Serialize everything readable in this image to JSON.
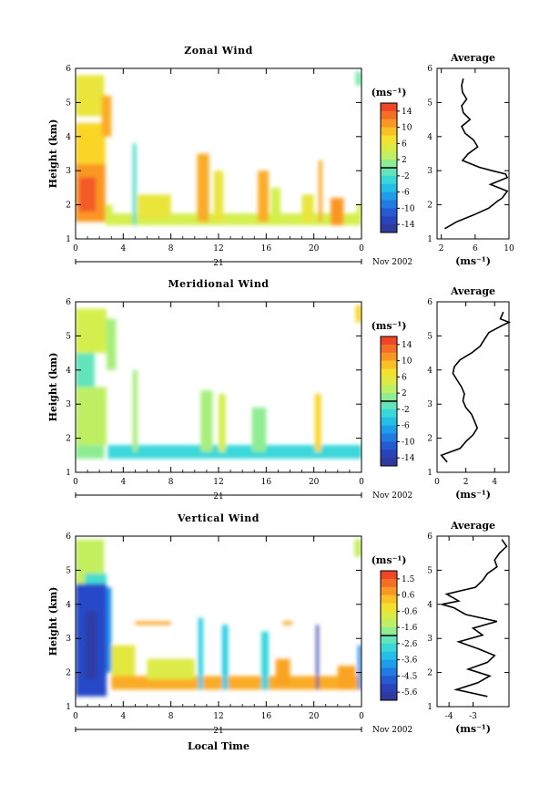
{
  "chart_data": [
    {
      "type": "heatmap",
      "panel": "zonal",
      "title": "Zonal Wind",
      "ylabel": "Height (km)",
      "xlabel": "",
      "xlim": [
        0,
        24
      ],
      "ylim": [
        1,
        6
      ],
      "xticks": [
        "0",
        "4",
        "8",
        "12",
        "16",
        "20",
        "0"
      ],
      "yticks": [
        "1",
        "2",
        "3",
        "4",
        "5",
        "6"
      ],
      "day_label": "21",
      "date_label": "Nov 2002",
      "colorbar": {
        "unit": "(ms⁻¹)",
        "min": -16,
        "max": 16,
        "ticks": [
          "14",
          "10",
          "6",
          "2",
          "-2",
          "-6",
          "-10",
          "-14"
        ]
      },
      "blobs": [
        {
          "x0": 0,
          "x1": 2.4,
          "y0": 4.6,
          "y1": 5.8,
          "value": 6
        },
        {
          "x0": 0,
          "x1": 2.5,
          "y0": 3.2,
          "y1": 4.4,
          "value": 8
        },
        {
          "x0": 0,
          "x1": 2.5,
          "y0": 1.5,
          "y1": 3.2,
          "value": 11
        },
        {
          "x0": 0.3,
          "x1": 1.7,
          "y0": 1.8,
          "y1": 2.8,
          "value": 14
        },
        {
          "x0": 2.2,
          "x1": 3.0,
          "y0": 4.0,
          "y1": 5.2,
          "value": 10
        },
        {
          "x0": 2.5,
          "x1": 3.1,
          "y0": 1.4,
          "y1": 2.0,
          "value": 4
        },
        {
          "x0": 3.0,
          "x1": 24,
          "y0": 1.4,
          "y1": 1.75,
          "value": 4
        },
        {
          "x0": 4.8,
          "x1": 5.1,
          "y0": 1.4,
          "y1": 3.8,
          "value": -2
        },
        {
          "x0": 5.2,
          "x1": 8.0,
          "y0": 1.6,
          "y1": 2.3,
          "value": 6
        },
        {
          "x0": 10.2,
          "x1": 11.2,
          "y0": 1.5,
          "y1": 3.5,
          "value": 10
        },
        {
          "x0": 11.6,
          "x1": 12.4,
          "y0": 1.5,
          "y1": 3.0,
          "value": 6
        },
        {
          "x0": 15.3,
          "x1": 16.2,
          "y0": 1.5,
          "y1": 3.0,
          "value": 10
        },
        {
          "x0": 16.4,
          "x1": 17.2,
          "y0": 1.4,
          "y1": 2.5,
          "value": 4
        },
        {
          "x0": 19.0,
          "x1": 20.0,
          "y0": 1.5,
          "y1": 2.3,
          "value": 6
        },
        {
          "x0": 20.4,
          "x1": 20.7,
          "y0": 1.5,
          "y1": 3.3,
          "value": 10
        },
        {
          "x0": 21.4,
          "x1": 22.5,
          "y0": 1.4,
          "y1": 2.2,
          "value": 11
        },
        {
          "x0": 23.5,
          "x1": 24,
          "y0": 5.5,
          "y1": 5.9,
          "value": 0
        },
        {
          "x0": 23.6,
          "x1": 24,
          "y0": 1.4,
          "y1": 2.0,
          "value": 4
        }
      ],
      "profile": {
        "title": "Average",
        "xlim": [
          1.5,
          10
        ],
        "xticks": [
          2,
          6,
          10
        ],
        "xticklabels": [
          "2",
          "6",
          "10"
        ],
        "xunit": "(ms⁻¹)",
        "y": [
          1.3,
          1.5,
          1.7,
          1.9,
          2.1,
          2.2,
          2.4,
          2.6,
          2.8,
          2.9,
          3.0,
          3.1,
          3.3,
          3.5,
          3.7,
          3.9,
          4.1,
          4.3,
          4.5,
          4.7,
          4.9,
          5.1,
          5.3,
          5.5,
          5.7
        ],
        "x": [
          2.4,
          3.8,
          5.8,
          7.6,
          8.6,
          9.2,
          9.8,
          7.8,
          9.8,
          9.6,
          8.0,
          6.5,
          4.5,
          5.2,
          6.3,
          5.8,
          4.8,
          4.4,
          5.4,
          4.6,
          4.4,
          5.0,
          4.5,
          4.4,
          4.6
        ]
      }
    },
    {
      "type": "heatmap",
      "panel": "meridional",
      "title": "Meridional Wind",
      "ylabel": "Height (km)",
      "xlabel": "",
      "xlim": [
        0,
        24
      ],
      "ylim": [
        1,
        6
      ],
      "xticks": [
        "0",
        "4",
        "8",
        "12",
        "16",
        "20",
        "0"
      ],
      "yticks": [
        "1",
        "2",
        "3",
        "4",
        "5",
        "6"
      ],
      "day_label": "21",
      "date_label": "Nov 2002",
      "colorbar": {
        "unit": "(ms⁻¹)",
        "min": -16,
        "max": 16,
        "ticks": [
          "14",
          "10",
          "6",
          "2",
          "-2",
          "-6",
          "-10",
          "-14"
        ]
      },
      "blobs": [
        {
          "x0": 0,
          "x1": 2.6,
          "y0": 4.5,
          "y1": 5.8,
          "value": 4
        },
        {
          "x0": 0,
          "x1": 1.6,
          "y0": 3.5,
          "y1": 4.5,
          "value": -1
        },
        {
          "x0": 0,
          "x1": 2.6,
          "y0": 1.8,
          "y1": 3.5,
          "value": 3
        },
        {
          "x0": 0,
          "x1": 2.4,
          "y0": 1.4,
          "y1": 1.8,
          "value": 1
        },
        {
          "x0": 2.6,
          "x1": 3.4,
          "y0": 4.0,
          "y1": 5.5,
          "value": 2
        },
        {
          "x0": 2.7,
          "x1": 24,
          "y0": 1.4,
          "y1": 1.8,
          "value": -3
        },
        {
          "x0": 4.8,
          "x1": 5.2,
          "y0": 1.6,
          "y1": 4.0,
          "value": 2
        },
        {
          "x0": 10.5,
          "x1": 11.5,
          "y0": 1.6,
          "y1": 3.4,
          "value": 2
        },
        {
          "x0": 12.0,
          "x1": 12.6,
          "y0": 1.6,
          "y1": 3.3,
          "value": 4
        },
        {
          "x0": 14.8,
          "x1": 16.0,
          "y0": 1.6,
          "y1": 2.9,
          "value": 1
        },
        {
          "x0": 20.1,
          "x1": 20.6,
          "y0": 1.6,
          "y1": 3.3,
          "value": 8
        },
        {
          "x0": 23.5,
          "x1": 24,
          "y0": 5.4,
          "y1": 5.9,
          "value": 8
        }
      ],
      "profile": {
        "title": "Average",
        "xlim": [
          0,
          5
        ],
        "xticks": [
          0,
          2,
          4
        ],
        "xticklabels": [
          "0",
          "2",
          "4"
        ],
        "xunit": "(ms⁻¹)",
        "y": [
          1.3,
          1.5,
          1.7,
          1.9,
          2.1,
          2.3,
          2.5,
          2.7,
          2.9,
          3.1,
          3.3,
          3.5,
          3.7,
          3.9,
          4.1,
          4.3,
          4.5,
          4.7,
          4.9,
          5.1,
          5.3,
          5.4,
          5.5,
          5.7
        ],
        "x": [
          0.7,
          0.3,
          1.6,
          2.0,
          2.5,
          2.8,
          2.6,
          2.4,
          2.0,
          1.8,
          1.9,
          1.7,
          1.4,
          1.1,
          1.2,
          1.6,
          2.4,
          3.0,
          3.3,
          3.6,
          4.5,
          5.0,
          4.4,
          4.6
        ]
      }
    },
    {
      "type": "heatmap",
      "panel": "vertical",
      "title": "Vertical Wind",
      "ylabel": "Height (km)",
      "xlabel": "Local Time",
      "xlim": [
        0,
        24
      ],
      "ylim": [
        1,
        6
      ],
      "xticks": [
        "0",
        "4",
        "8",
        "12",
        "16",
        "20",
        "0"
      ],
      "yticks": [
        "1",
        "2",
        "3",
        "4",
        "5",
        "6"
      ],
      "day_label": "21",
      "date_label": "Nov 2002",
      "colorbar": {
        "unit": "(ms⁻¹)",
        "min": -6,
        "max": 2,
        "ticks": [
          "1.5",
          "0.6",
          "-0.6",
          "-1.6",
          "-2.6",
          "-3.6",
          "-4.5",
          "-5.6"
        ]
      },
      "blobs": [
        {
          "x0": 0,
          "x1": 2.4,
          "y0": 4.6,
          "y1": 5.9,
          "value": -1.2
        },
        {
          "x0": 0.8,
          "x1": 2.6,
          "y0": 4.5,
          "y1": 4.9,
          "value": -2.6
        },
        {
          "x0": 0,
          "x1": 2.6,
          "y0": 1.3,
          "y1": 4.6,
          "value": -5.0
        },
        {
          "x0": 0.8,
          "x1": 1.8,
          "y0": 1.8,
          "y1": 3.8,
          "value": -5.6
        },
        {
          "x0": 2.6,
          "x1": 3.0,
          "y0": 2.0,
          "y1": 4.5,
          "value": -4.0
        },
        {
          "x0": 3.0,
          "x1": 5.0,
          "y0": 1.6,
          "y1": 2.8,
          "value": -0.6
        },
        {
          "x0": 3.0,
          "x1": 24,
          "y0": 1.5,
          "y1": 1.9,
          "value": 0.5
        },
        {
          "x0": 5.0,
          "x1": 8.0,
          "y0": 3.4,
          "y1": 3.5,
          "value": 0.6
        },
        {
          "x0": 6.0,
          "x1": 10.0,
          "y0": 1.8,
          "y1": 2.4,
          "value": -0.8
        },
        {
          "x0": 10.3,
          "x1": 10.7,
          "y0": 1.5,
          "y1": 3.6,
          "value": -3.0
        },
        {
          "x0": 12.3,
          "x1": 12.8,
          "y0": 1.5,
          "y1": 3.4,
          "value": -3.0
        },
        {
          "x0": 15.6,
          "x1": 16.2,
          "y0": 1.5,
          "y1": 3.2,
          "value": -2.8
        },
        {
          "x0": 16.8,
          "x1": 18.0,
          "y0": 1.6,
          "y1": 2.4,
          "value": 0.6
        },
        {
          "x0": 17.4,
          "x1": 18.2,
          "y0": 3.4,
          "y1": 3.5,
          "value": 0.6
        },
        {
          "x0": 20.2,
          "x1": 20.4,
          "y0": 1.5,
          "y1": 3.4,
          "value": -5.6
        },
        {
          "x0": 22.0,
          "x1": 23.5,
          "y0": 1.5,
          "y1": 2.2,
          "value": 0.6
        },
        {
          "x0": 23.7,
          "x1": 24,
          "y0": 1.5,
          "y1": 2.8,
          "value": -4.0
        },
        {
          "x0": 23.4,
          "x1": 24,
          "y0": 5.4,
          "y1": 5.9,
          "value": -1.2
        }
      ],
      "profile": {
        "title": "Average",
        "xlim": [
          -4.5,
          -1.5
        ],
        "xticks": [
          -4,
          -3
        ],
        "xticklabels": [
          "-4",
          "-3"
        ],
        "xunit": "(ms⁻¹)",
        "y": [
          1.3,
          1.5,
          1.7,
          1.9,
          2.1,
          2.3,
          2.5,
          2.7,
          2.9,
          3.1,
          3.3,
          3.5,
          3.7,
          3.9,
          4.0,
          4.1,
          4.3,
          4.5,
          4.7,
          4.9,
          5.1,
          5.3,
          5.5,
          5.7,
          5.9
        ],
        "x": [
          -2.4,
          -3.7,
          -2.8,
          -2.3,
          -3.2,
          -2.4,
          -2.1,
          -2.8,
          -3.6,
          -2.6,
          -3.0,
          -2.0,
          -3.3,
          -3.8,
          -4.3,
          -3.6,
          -4.1,
          -2.9,
          -2.6,
          -2.4,
          -2.0,
          -2.1,
          -1.9,
          -1.6,
          -1.8
        ]
      }
    }
  ]
}
